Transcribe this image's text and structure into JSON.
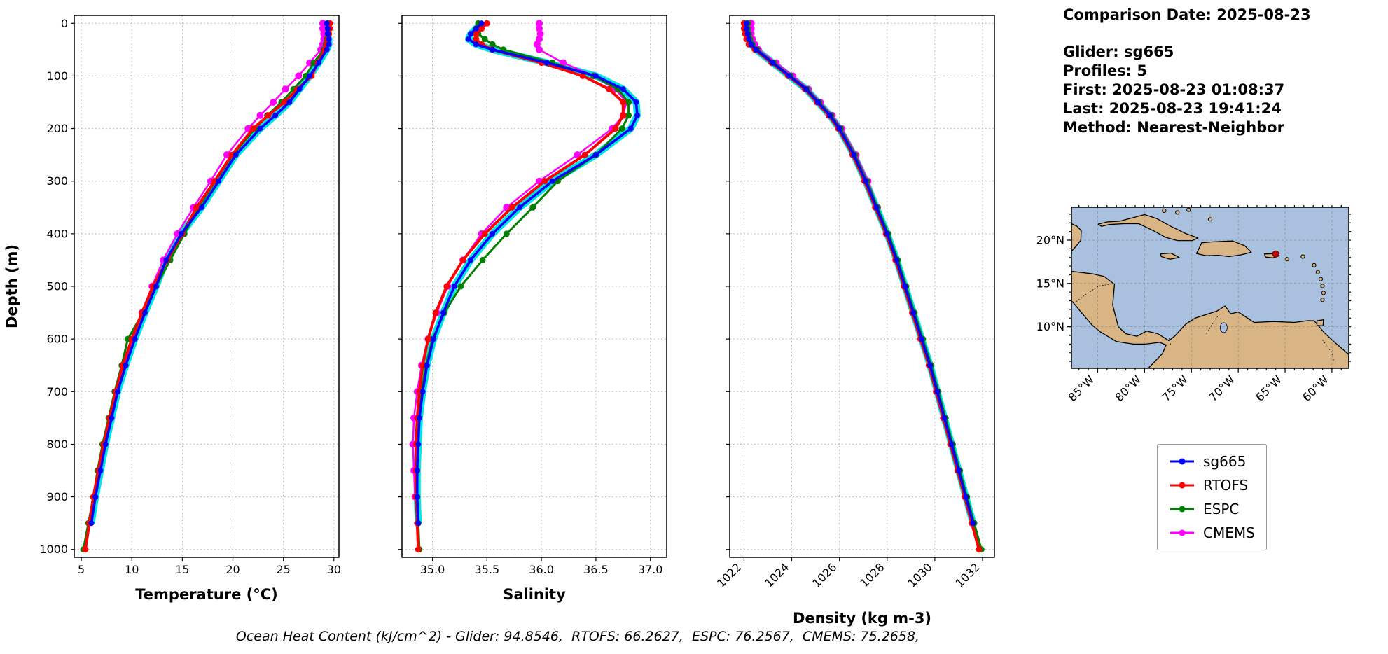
{
  "info_panel": {
    "comparison_date": "Comparison Date: 2025-08-23",
    "glider": "Glider: sg665",
    "profiles": "Profiles: 5",
    "first": "First: 2025-08-23 01:08:37",
    "last": "Last: 2025-08-23 19:41:24",
    "method": "Method: Nearest-Neighbor"
  },
  "labels": {
    "depth_axis": "Depth (m)"
  },
  "footer": {
    "text": "Ocean Heat Content (kJ/cm^2) - Glider: 94.8546,  RTOFS: 66.2627,  ESPC: 76.2567,  CMEMS: 75.2658,"
  },
  "colors": {
    "band": "#00e5e5",
    "sg665": "#0000ff",
    "rtofs": "#ff0000",
    "espc": "#008000",
    "cmems": "#ff00ff"
  },
  "legend": {
    "items": [
      {
        "label": "sg665",
        "color": "#0000ff"
      },
      {
        "label": "RTOFS",
        "color": "#ff0000"
      },
      {
        "label": "ESPC",
        "color": "#008000"
      },
      {
        "label": "CMEMS",
        "color": "#ff00ff"
      }
    ]
  },
  "chart_data": [
    {
      "type": "line",
      "id": "temperature",
      "xlabel": "Temperature (°C)",
      "xlim": [
        4.3,
        30.5
      ],
      "depth_lim": [
        -15,
        1015
      ],
      "xticks": [
        5,
        10,
        15,
        20,
        25,
        30
      ],
      "xtick_labels": [
        "5",
        "10",
        "15",
        "20",
        "25",
        "30"
      ],
      "depth_ticks": [
        0,
        100,
        200,
        300,
        400,
        500,
        600,
        700,
        800,
        900,
        1000
      ],
      "show_depth_labels": true,
      "rotate_xticks": false,
      "band": true,
      "depths": [
        0,
        10,
        20,
        30,
        40,
        50,
        75,
        100,
        125,
        150,
        175,
        200,
        250,
        300,
        350,
        400,
        450,
        500,
        550,
        600,
        650,
        700,
        750,
        800,
        850,
        900,
        950,
        1000
      ],
      "series": [
        {
          "name": "sg665",
          "color": "#0000ff",
          "lw": 3.5,
          "marker_r": 4,
          "values": [
            29.3,
            29.4,
            29.4,
            29.5,
            29.5,
            29.3,
            28.5,
            27.6,
            26.6,
            25.6,
            24.2,
            22.7,
            20.3,
            18.6,
            16.9,
            14.9,
            13.4,
            12.4,
            11.3,
            10.3,
            9.4,
            8.6,
            8.0,
            7.4,
            6.9,
            6.4,
            6.0
          ]
        },
        {
          "name": "RTOFS",
          "color": "#ff0000",
          "lw": 4,
          "marker_r": 4.5,
          "values": [
            29.6,
            29.6,
            29.5,
            29.4,
            29.3,
            29.1,
            28.4,
            27.8,
            26.4,
            25.1,
            23.5,
            22.0,
            19.9,
            18.2,
            16.4,
            15.0,
            13.5,
            12.1,
            11.0,
            10.0,
            9.1,
            8.4,
            7.8,
            7.2,
            6.7,
            6.2,
            5.8,
            5.4
          ]
        },
        {
          "name": "ESPC",
          "color": "#008000",
          "lw": 3,
          "marker_r": 4.5,
          "values": [
            29.4,
            29.4,
            29.4,
            29.3,
            29.2,
            29.0,
            28.0,
            27.2,
            26.0,
            24.8,
            23.4,
            22.2,
            20.0,
            18.3,
            16.6,
            15.2,
            13.8,
            12.4,
            11.1,
            9.6,
            9.0,
            8.3,
            7.7,
            7.1,
            6.6,
            6.2,
            5.7,
            5.2
          ]
        },
        {
          "name": "CMEMS",
          "color": "#ff00ff",
          "lw": 2.5,
          "marker_r": 5,
          "values": [
            28.9,
            28.9,
            29.0,
            29.0,
            28.9,
            28.7,
            27.6,
            26.5,
            25.2,
            24.0,
            22.7,
            21.5,
            19.4,
            17.8,
            16.1,
            14.5,
            13.1,
            12.0,
            11.0,
            10.1,
            9.3,
            8.5,
            7.9,
            7.3,
            6.8,
            6.3
          ]
        }
      ]
    },
    {
      "type": "line",
      "id": "salinity",
      "xlabel": "Salinity",
      "xlim": [
        34.72,
        37.15
      ],
      "depth_lim": [
        -15,
        1015
      ],
      "xticks": [
        35.0,
        35.5,
        36.0,
        36.5,
        37.0
      ],
      "xtick_labels": [
        "35.0",
        "35.5",
        "36.0",
        "36.5",
        "37.0"
      ],
      "depth_ticks": [
        0,
        100,
        200,
        300,
        400,
        500,
        600,
        700,
        800,
        900,
        1000
      ],
      "show_depth_labels": false,
      "rotate_xticks": false,
      "band": true,
      "depths": [
        0,
        10,
        20,
        30,
        40,
        50,
        75,
        100,
        125,
        150,
        175,
        200,
        250,
        300,
        350,
        400,
        450,
        500,
        550,
        600,
        650,
        700,
        750,
        800,
        850,
        900,
        950,
        1000
      ],
      "series": [
        {
          "name": "sg665",
          "color": "#0000ff",
          "lw": 3.5,
          "marker_r": 4,
          "values": [
            35.45,
            35.4,
            35.35,
            35.33,
            35.4,
            35.55,
            36.05,
            36.5,
            36.75,
            36.87,
            36.88,
            36.82,
            36.5,
            36.1,
            35.8,
            35.55,
            35.35,
            35.2,
            35.1,
            35.01,
            34.95,
            34.91,
            34.88,
            34.87,
            34.86,
            34.86,
            34.87
          ]
        },
        {
          "name": "RTOFS",
          "color": "#ff0000",
          "lw": 4,
          "marker_r": 4.5,
          "values": [
            35.5,
            35.45,
            35.4,
            35.4,
            35.45,
            35.55,
            36.0,
            36.38,
            36.62,
            36.75,
            36.75,
            36.68,
            36.4,
            36.03,
            35.73,
            35.48,
            35.28,
            35.13,
            35.03,
            34.96,
            34.91,
            34.88,
            34.86,
            34.85,
            34.85,
            34.85,
            34.86,
            34.87
          ]
        },
        {
          "name": "ESPC",
          "color": "#008000",
          "lw": 3,
          "marker_r": 4.5,
          "values": [
            35.42,
            35.4,
            35.42,
            35.48,
            35.55,
            35.65,
            36.1,
            36.48,
            36.7,
            36.8,
            36.8,
            36.74,
            36.5,
            36.15,
            35.92,
            35.68,
            35.46,
            35.26,
            35.11,
            35.0,
            34.94,
            34.9,
            34.87,
            34.86,
            34.86,
            34.86,
            34.87,
            34.88
          ]
        },
        {
          "name": "CMEMS",
          "color": "#ff00ff",
          "lw": 2.5,
          "marker_r": 5,
          "values": [
            35.98,
            35.98,
            35.99,
            35.98,
            35.96,
            35.98,
            36.2,
            36.48,
            36.68,
            36.78,
            36.75,
            36.65,
            36.33,
            35.98,
            35.68,
            35.45,
            35.28,
            35.14,
            35.04,
            34.96,
            34.9,
            34.86,
            34.83,
            34.82,
            34.83,
            34.84
          ]
        }
      ]
    },
    {
      "type": "line",
      "id": "density",
      "xlabel": "Density (kg m-3)",
      "xlim": [
        1021.4,
        1032.5
      ],
      "depth_lim": [
        -15,
        1015
      ],
      "xticks": [
        1022,
        1024,
        1026,
        1028,
        1030,
        1032
      ],
      "xtick_labels": [
        "1022",
        "1024",
        "1026",
        "1028",
        "1030",
        "1032"
      ],
      "depth_ticks": [
        0,
        100,
        200,
        300,
        400,
        500,
        600,
        700,
        800,
        900,
        1000
      ],
      "show_depth_labels": false,
      "rotate_xticks": true,
      "band": true,
      "depths": [
        0,
        10,
        20,
        30,
        40,
        50,
        75,
        100,
        125,
        150,
        175,
        200,
        250,
        300,
        350,
        400,
        450,
        500,
        550,
        600,
        650,
        700,
        750,
        800,
        850,
        900,
        950,
        1000
      ],
      "series": [
        {
          "name": "sg665",
          "color": "#0000ff",
          "lw": 3.5,
          "marker_r": 4,
          "values": [
            1022.1,
            1022.1,
            1022.15,
            1022.2,
            1022.3,
            1022.5,
            1023.2,
            1023.9,
            1024.6,
            1025.1,
            1025.6,
            1026.0,
            1026.6,
            1027.1,
            1027.55,
            1028.0,
            1028.4,
            1028.75,
            1029.1,
            1029.45,
            1029.8,
            1030.1,
            1030.4,
            1030.7,
            1031.0,
            1031.3,
            1031.6
          ]
        },
        {
          "name": "RTOFS",
          "color": "#ff0000",
          "lw": 4,
          "marker_r": 4.5,
          "values": [
            1022.0,
            1022.0,
            1022.05,
            1022.1,
            1022.2,
            1022.45,
            1023.15,
            1023.85,
            1024.55,
            1025.05,
            1025.55,
            1025.95,
            1026.55,
            1027.05,
            1027.5,
            1027.95,
            1028.35,
            1028.7,
            1029.05,
            1029.4,
            1029.75,
            1030.05,
            1030.35,
            1030.65,
            1030.95,
            1031.25,
            1031.55,
            1031.85
          ]
        },
        {
          "name": "ESPC",
          "color": "#008000",
          "lw": 3,
          "marker_r": 4.5,
          "values": [
            1022.15,
            1022.15,
            1022.2,
            1022.25,
            1022.35,
            1022.55,
            1023.25,
            1023.95,
            1024.65,
            1025.15,
            1025.65,
            1026.05,
            1026.65,
            1027.15,
            1027.6,
            1028.05,
            1028.45,
            1028.8,
            1029.15,
            1029.5,
            1029.85,
            1030.15,
            1030.45,
            1030.75,
            1031.05,
            1031.35,
            1031.65,
            1031.95
          ]
        },
        {
          "name": "CMEMS",
          "color": "#ff00ff",
          "lw": 2.5,
          "marker_r": 5,
          "values": [
            1022.3,
            1022.3,
            1022.3,
            1022.35,
            1022.45,
            1022.6,
            1023.35,
            1024.05,
            1024.7,
            1025.2,
            1025.7,
            1026.1,
            1026.7,
            1027.2,
            1027.6,
            1028.0,
            1028.4,
            1028.75,
            1029.1,
            1029.45,
            1029.8,
            1030.1,
            1030.4,
            1030.7,
            1031.0,
            1031.3
          ]
        }
      ]
    }
  ],
  "map": {
    "extent": {
      "lon_min": -87.8,
      "lon_max": -58.2,
      "lat_min": 5.2,
      "lat_max": 23.8
    },
    "ocean_color": "#a9c1de",
    "land_color": "#d9b585",
    "xticks": [
      {
        "lon": -85,
        "label": "85°W"
      },
      {
        "lon": -80,
        "label": "80°W"
      },
      {
        "lon": -75,
        "label": "75°W"
      },
      {
        "lon": -70,
        "label": "70°W"
      },
      {
        "lon": -65,
        "label": "65°W"
      },
      {
        "lon": -60,
        "label": "60°W"
      }
    ],
    "yticks": [
      {
        "lat": 20,
        "label": "20°N"
      },
      {
        "lat": 15,
        "label": "15°N"
      },
      {
        "lat": 10,
        "label": "10°N"
      }
    ],
    "marker": {
      "lon": -66.0,
      "lat": 18.4,
      "color": "#cc0000"
    },
    "lake": {
      "lon": -71.55,
      "lat": 9.9
    },
    "land": [
      [
        [
          -87.8,
          21.9
        ],
        [
          -87.2,
          21.6
        ],
        [
          -86.75,
          21.1
        ],
        [
          -86.8,
          20.0
        ],
        [
          -87.3,
          19.3
        ],
        [
          -87.8,
          18.7
        ]
      ],
      [
        [
          -87.8,
          16.4
        ],
        [
          -85.5,
          16.1
        ],
        [
          -84.3,
          15.8
        ],
        [
          -83.2,
          14.9
        ],
        [
          -83.4,
          12.5
        ],
        [
          -82.8,
          10.0
        ],
        [
          -82.0,
          9.2
        ],
        [
          -80.8,
          8.9
        ],
        [
          -79.8,
          9.5
        ],
        [
          -78.6,
          9.2
        ],
        [
          -77.4,
          8.4
        ],
        [
          -76.8,
          8.9
        ],
        [
          -75.6,
          10.3
        ],
        [
          -74.6,
          11.0
        ],
        [
          -72.3,
          11.8
        ],
        [
          -71.4,
          12.4
        ],
        [
          -70.8,
          11.5
        ],
        [
          -70.0,
          11.7
        ],
        [
          -68.3,
          10.5
        ],
        [
          -66.2,
          10.6
        ],
        [
          -64.0,
          10.5
        ],
        [
          -62.6,
          10.7
        ],
        [
          -61.9,
          10.7
        ],
        [
          -60.8,
          9.3
        ],
        [
          -59.8,
          8.3
        ],
        [
          -58.2,
          6.8
        ],
        [
          -58.2,
          5.2
        ],
        [
          -79.6,
          5.2
        ],
        [
          -78.1,
          6.9
        ],
        [
          -77.7,
          7.9
        ],
        [
          -78.4,
          8.2
        ],
        [
          -79.9,
          8.0
        ],
        [
          -81.2,
          8.0
        ],
        [
          -83.0,
          8.3
        ],
        [
          -84.7,
          9.4
        ],
        [
          -85.6,
          10.2
        ],
        [
          -86.7,
          11.6
        ],
        [
          -87.4,
          12.5
        ],
        [
          -87.8,
          13.0
        ]
      ],
      [
        [
          -84.95,
          21.85
        ],
        [
          -84.0,
          22.1
        ],
        [
          -82.6,
          22.2
        ],
        [
          -81.2,
          22.6
        ],
        [
          -80.0,
          22.95
        ],
        [
          -78.7,
          22.5
        ],
        [
          -77.2,
          21.6
        ],
        [
          -75.7,
          20.8
        ],
        [
          -74.3,
          20.25
        ],
        [
          -74.9,
          19.95
        ],
        [
          -76.5,
          19.95
        ],
        [
          -77.8,
          20.35
        ],
        [
          -78.9,
          21.0
        ],
        [
          -80.6,
          21.9
        ],
        [
          -82.2,
          21.9
        ],
        [
          -83.8,
          21.8
        ],
        [
          -84.6,
          21.6
        ]
      ],
      [
        [
          -74.45,
          18.45
        ],
        [
          -73.9,
          19.7
        ],
        [
          -72.8,
          19.8
        ],
        [
          -71.7,
          19.85
        ],
        [
          -70.6,
          19.9
        ],
        [
          -69.3,
          19.35
        ],
        [
          -68.6,
          18.6
        ],
        [
          -69.7,
          18.3
        ],
        [
          -71.0,
          18.1
        ],
        [
          -72.1,
          18.25
        ],
        [
          -73.4,
          18.2
        ]
      ],
      [
        [
          -78.3,
          18.4
        ],
        [
          -77.2,
          18.5
        ],
        [
          -76.3,
          18.0
        ],
        [
          -77.3,
          17.8
        ],
        [
          -78.2,
          18.1
        ]
      ],
      [
        [
          -67.2,
          18.4
        ],
        [
          -66.1,
          18.45
        ],
        [
          -65.6,
          18.2
        ],
        [
          -66.3,
          17.95
        ],
        [
          -67.1,
          18.05
        ]
      ],
      [
        [
          -61.6,
          10.7
        ],
        [
          -60.9,
          10.8
        ],
        [
          -60.95,
          10.1
        ],
        [
          -61.6,
          10.15
        ]
      ]
    ],
    "islands": [
      [
        -61.9,
        17.1
      ],
      [
        -61.5,
        16.3
      ],
      [
        -61.2,
        15.5
      ],
      [
        -61.0,
        14.7
      ],
      [
        -60.9,
        13.9
      ],
      [
        -61.0,
        13.1
      ],
      [
        -64.8,
        17.8
      ],
      [
        -63.1,
        18.1
      ],
      [
        -77.9,
        23.4
      ],
      [
        -76.5,
        23.2
      ],
      [
        -75.3,
        23.5
      ],
      [
        -73.0,
        22.4
      ]
    ],
    "borders": [
      [
        [
          -87.3,
          12.9
        ],
        [
          -86.3,
          13.7
        ],
        [
          -84.9,
          14.7
        ],
        [
          -83.1,
          15.0
        ]
      ],
      [
        [
          -77.4,
          8.7
        ],
        [
          -77.2,
          7.9
        ]
      ],
      [
        [
          -73.4,
          9.2
        ],
        [
          -72.5,
          10.8
        ],
        [
          -71.9,
          11.6
        ]
      ],
      [
        [
          -61.0,
          8.5
        ],
        [
          -60.0,
          7.0
        ],
        [
          -59.8,
          6.0
        ]
      ]
    ]
  }
}
